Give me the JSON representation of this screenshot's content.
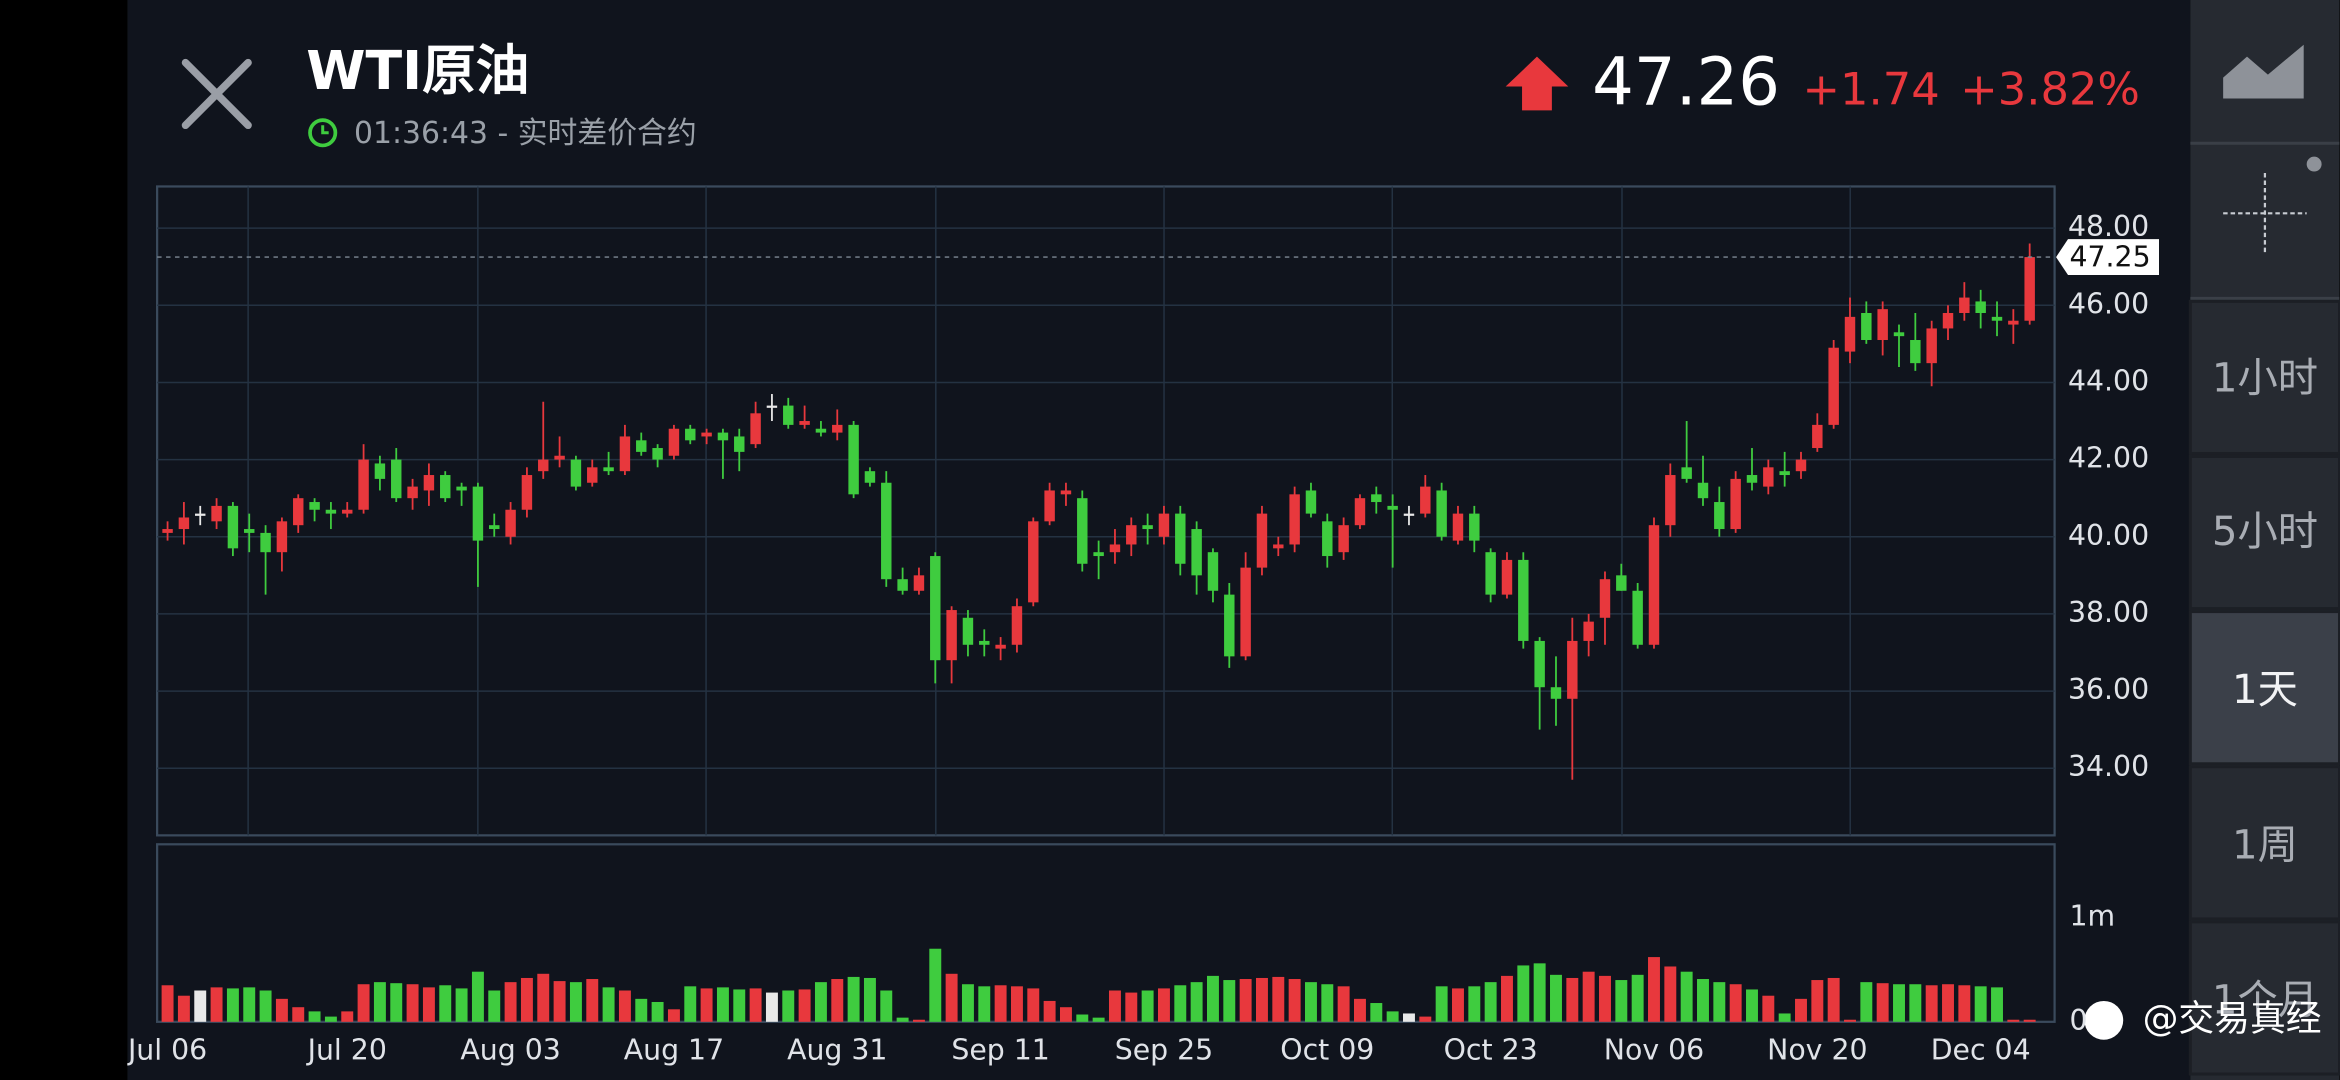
{
  "header": {
    "title": "WTI原油",
    "subtitle": "01:36:43 - 实时差价合约",
    "price": "47.26",
    "change": "+1.74",
    "change_pct": "+3.82%"
  },
  "sidebar": {
    "intervals": [
      "1小时",
      "5小时",
      "1天",
      "1周",
      "1个月"
    ],
    "selected": "1天"
  },
  "watermark": "@交易真经",
  "chart_data": {
    "type": "candlestick",
    "categories": [
      "Jul 06",
      null,
      null,
      null,
      null,
      null,
      null,
      null,
      null,
      null,
      null,
      "Jul 20",
      null,
      null,
      null,
      null,
      null,
      null,
      null,
      null,
      null,
      "Aug 03",
      null,
      null,
      null,
      null,
      null,
      null,
      null,
      null,
      null,
      "Aug 17",
      null,
      null,
      null,
      null,
      null,
      null,
      null,
      null,
      null,
      "Aug 31",
      null,
      null,
      null,
      null,
      null,
      null,
      null,
      null,
      null,
      "Sep 11",
      null,
      null,
      null,
      null,
      null,
      null,
      null,
      null,
      null,
      "Sep 25",
      null,
      null,
      null,
      null,
      null,
      null,
      null,
      null,
      null,
      "Oct 09",
      null,
      null,
      null,
      null,
      null,
      null,
      null,
      null,
      null,
      "Oct 23",
      null,
      null,
      null,
      null,
      null,
      null,
      null,
      null,
      null,
      "Nov 06",
      null,
      null,
      null,
      null,
      null,
      null,
      null,
      null,
      null,
      "Nov 20",
      null,
      null,
      null,
      null,
      null,
      null,
      null,
      null,
      null,
      "Dec 04",
      null,
      null,
      null
    ],
    "candles": [
      [
        40.1,
        40.4,
        39.9,
        40.2
      ],
      [
        40.2,
        40.9,
        39.8,
        40.5
      ],
      [
        40.6,
        40.8,
        40.3,
        40.6
      ],
      [
        40.4,
        41.0,
        40.2,
        40.8
      ],
      [
        40.8,
        40.9,
        39.5,
        39.7
      ],
      [
        40.2,
        40.6,
        39.6,
        40.1
      ],
      [
        40.1,
        40.3,
        38.5,
        39.6
      ],
      [
        39.6,
        40.5,
        39.1,
        40.4
      ],
      [
        40.3,
        41.1,
        40.1,
        41.0
      ],
      [
        40.9,
        41.0,
        40.4,
        40.7
      ],
      [
        40.7,
        40.9,
        40.2,
        40.6
      ],
      [
        40.6,
        40.9,
        40.5,
        40.7
      ],
      [
        40.7,
        42.4,
        40.6,
        42.0
      ],
      [
        41.9,
        42.1,
        41.2,
        41.5
      ],
      [
        42.0,
        42.3,
        40.9,
        41.0
      ],
      [
        41.0,
        41.5,
        40.7,
        41.3
      ],
      [
        41.2,
        41.9,
        40.8,
        41.6
      ],
      [
        41.6,
        41.7,
        40.9,
        41.0
      ],
      [
        41.3,
        41.4,
        40.8,
        41.2
      ],
      [
        41.3,
        41.4,
        38.7,
        39.9
      ],
      [
        40.3,
        40.6,
        40.0,
        40.2
      ],
      [
        40.0,
        40.9,
        39.8,
        40.7
      ],
      [
        40.7,
        41.8,
        40.5,
        41.6
      ],
      [
        41.7,
        43.5,
        41.5,
        42.0
      ],
      [
        42.0,
        42.6,
        41.8,
        42.1
      ],
      [
        42.0,
        42.1,
        41.2,
        41.3
      ],
      [
        41.4,
        42.0,
        41.3,
        41.8
      ],
      [
        41.8,
        42.2,
        41.6,
        41.7
      ],
      [
        41.7,
        42.9,
        41.6,
        42.6
      ],
      [
        42.5,
        42.7,
        42.1,
        42.2
      ],
      [
        42.3,
        42.4,
        41.8,
        42.0
      ],
      [
        42.1,
        42.9,
        42.0,
        42.8
      ],
      [
        42.8,
        42.9,
        42.4,
        42.5
      ],
      [
        42.6,
        42.8,
        42.4,
        42.7
      ],
      [
        42.7,
        42.8,
        41.5,
        42.5
      ],
      [
        42.6,
        42.8,
        41.7,
        42.2
      ],
      [
        42.4,
        43.5,
        42.3,
        43.2
      ],
      [
        43.4,
        43.7,
        43.0,
        43.4
      ],
      [
        43.4,
        43.6,
        42.8,
        42.9
      ],
      [
        42.9,
        43.4,
        42.8,
        43.0
      ],
      [
        42.8,
        43.0,
        42.6,
        42.7
      ],
      [
        42.7,
        43.3,
        42.5,
        42.9
      ],
      [
        42.9,
        43.0,
        41.0,
        41.1
      ],
      [
        41.7,
        41.8,
        41.3,
        41.4
      ],
      [
        41.4,
        41.7,
        38.7,
        38.9
      ],
      [
        38.9,
        39.2,
        38.5,
        38.6
      ],
      [
        38.6,
        39.2,
        38.5,
        39.0
      ],
      [
        39.5,
        39.6,
        36.2,
        36.8
      ],
      [
        36.8,
        38.2,
        36.2,
        38.1
      ],
      [
        37.9,
        38.1,
        36.9,
        37.2
      ],
      [
        37.3,
        37.6,
        36.9,
        37.2
      ],
      [
        37.1,
        37.4,
        36.8,
        37.2
      ],
      [
        37.2,
        38.4,
        37.0,
        38.2
      ],
      [
        38.3,
        40.5,
        38.2,
        40.4
      ],
      [
        40.4,
        41.4,
        40.3,
        41.2
      ],
      [
        41.1,
        41.4,
        40.8,
        41.2
      ],
      [
        41.0,
        41.2,
        39.1,
        39.3
      ],
      [
        39.6,
        39.9,
        38.9,
        39.5
      ],
      [
        39.6,
        40.2,
        39.3,
        39.8
      ],
      [
        39.8,
        40.5,
        39.5,
        40.3
      ],
      [
        40.3,
        40.6,
        39.8,
        40.2
      ],
      [
        40.0,
        40.8,
        39.8,
        40.6
      ],
      [
        40.6,
        40.8,
        39.0,
        39.3
      ],
      [
        40.2,
        40.4,
        38.5,
        39.0
      ],
      [
        39.6,
        39.7,
        38.3,
        38.6
      ],
      [
        38.5,
        38.8,
        36.6,
        36.9
      ],
      [
        36.9,
        39.6,
        36.8,
        39.2
      ],
      [
        39.2,
        40.8,
        39.0,
        40.6
      ],
      [
        39.7,
        40.0,
        39.5,
        39.8
      ],
      [
        39.8,
        41.3,
        39.6,
        41.1
      ],
      [
        41.2,
        41.4,
        40.5,
        40.6
      ],
      [
        40.4,
        40.6,
        39.2,
        39.5
      ],
      [
        39.6,
        40.5,
        39.4,
        40.3
      ],
      [
        40.3,
        41.1,
        40.2,
        41.0
      ],
      [
        41.1,
        41.3,
        40.6,
        40.9
      ],
      [
        40.8,
        41.1,
        39.2,
        40.7
      ],
      [
        40.6,
        40.8,
        40.3,
        40.6
      ],
      [
        40.6,
        41.6,
        40.5,
        41.3
      ],
      [
        41.2,
        41.4,
        39.9,
        40.0
      ],
      [
        39.9,
        40.8,
        39.8,
        40.6
      ],
      [
        40.6,
        40.8,
        39.6,
        39.9
      ],
      [
        39.6,
        39.7,
        38.3,
        38.5
      ],
      [
        38.5,
        39.6,
        38.4,
        39.4
      ],
      [
        39.4,
        39.6,
        37.1,
        37.3
      ],
      [
        37.3,
        37.4,
        35.0,
        36.1
      ],
      [
        36.1,
        36.9,
        35.1,
        35.8
      ],
      [
        35.8,
        37.9,
        33.7,
        37.3
      ],
      [
        37.3,
        38.0,
        36.9,
        37.8
      ],
      [
        37.9,
        39.1,
        37.2,
        38.9
      ],
      [
        39.0,
        39.3,
        38.6,
        38.6
      ],
      [
        38.6,
        38.8,
        37.1,
        37.2
      ],
      [
        37.2,
        40.5,
        37.1,
        40.3
      ],
      [
        40.3,
        41.9,
        40.0,
        41.6
      ],
      [
        41.8,
        43.0,
        41.4,
        41.5
      ],
      [
        41.4,
        42.1,
        40.8,
        41.0
      ],
      [
        40.9,
        41.3,
        40.0,
        40.2
      ],
      [
        40.2,
        41.7,
        40.1,
        41.5
      ],
      [
        41.6,
        42.3,
        41.2,
        41.4
      ],
      [
        41.3,
        42.0,
        41.1,
        41.8
      ],
      [
        41.7,
        42.2,
        41.3,
        41.6
      ],
      [
        41.7,
        42.2,
        41.5,
        42.0
      ],
      [
        42.3,
        43.2,
        42.2,
        42.9
      ],
      [
        42.9,
        45.1,
        42.8,
        44.9
      ],
      [
        44.8,
        46.2,
        44.5,
        45.7
      ],
      [
        45.8,
        46.1,
        45.0,
        45.1
      ],
      [
        45.1,
        46.1,
        44.7,
        45.9
      ],
      [
        45.3,
        45.5,
        44.4,
        45.2
      ],
      [
        45.1,
        45.8,
        44.3,
        44.5
      ],
      [
        44.5,
        45.6,
        43.9,
        45.4
      ],
      [
        45.4,
        46.0,
        45.1,
        45.8
      ],
      [
        45.8,
        46.6,
        45.6,
        46.2
      ],
      [
        46.1,
        46.4,
        45.4,
        45.8
      ],
      [
        45.7,
        46.1,
        45.2,
        45.6
      ],
      [
        45.5,
        45.9,
        45.0,
        45.6
      ],
      [
        45.6,
        47.6,
        45.5,
        47.25
      ]
    ],
    "volumes": [
      0.35,
      0.25,
      0.3,
      0.33,
      0.32,
      0.33,
      0.3,
      0.22,
      0.14,
      0.1,
      0.05,
      0.1,
      0.36,
      0.38,
      0.37,
      0.36,
      0.33,
      0.35,
      0.32,
      0.48,
      0.3,
      0.38,
      0.42,
      0.46,
      0.39,
      0.38,
      0.41,
      0.33,
      0.3,
      0.22,
      0.19,
      0.12,
      0.34,
      0.32,
      0.33,
      0.31,
      0.32,
      0.28,
      0.3,
      0.31,
      0.38,
      0.41,
      0.43,
      0.42,
      0.3,
      0.04,
      0.02,
      0.7,
      0.46,
      0.36,
      0.34,
      0.35,
      0.34,
      0.32,
      0.2,
      0.14,
      0.07,
      0.04,
      0.3,
      0.28,
      0.3,
      0.32,
      0.35,
      0.38,
      0.44,
      0.4,
      0.41,
      0.42,
      0.43,
      0.41,
      0.38,
      0.36,
      0.34,
      0.22,
      0.18,
      0.1,
      0.08,
      0.05,
      0.34,
      0.32,
      0.34,
      0.38,
      0.44,
      0.54,
      0.56,
      0.45,
      0.42,
      0.48,
      0.44,
      0.4,
      0.45,
      0.62,
      0.53,
      0.48,
      0.41,
      0.38,
      0.36,
      0.31,
      0.25,
      0.08,
      0.22,
      0.4,
      0.42,
      0.02,
      0.38,
      0.37,
      0.36,
      0.36,
      0.35,
      0.36,
      0.35,
      0.34,
      0.33,
      0.02,
      0.02
    ],
    "up_color": "#e8383d",
    "down_color": "#3fcc3f",
    "doji_color": "#e8e8e8",
    "ylim": [
      32.26,
      49.08
    ],
    "yticks": [
      {
        "value": 34,
        "label": "34.00"
      },
      {
        "value": 36,
        "label": "36.00"
      },
      {
        "value": 38,
        "label": "38.00"
      },
      {
        "value": 40,
        "label": "40.00"
      },
      {
        "value": 42,
        "label": "42.00"
      },
      {
        "value": 44,
        "label": "44.00"
      },
      {
        "value": 46,
        "label": "46.00"
      },
      {
        "value": 48,
        "label": "48.00"
      }
    ],
    "last_price": 47.25,
    "vlim": [
      0,
      1.7
    ],
    "vticks": [
      0,
      {
        "value": 1,
        "label": "1m"
      }
    ],
    "grid": true
  }
}
